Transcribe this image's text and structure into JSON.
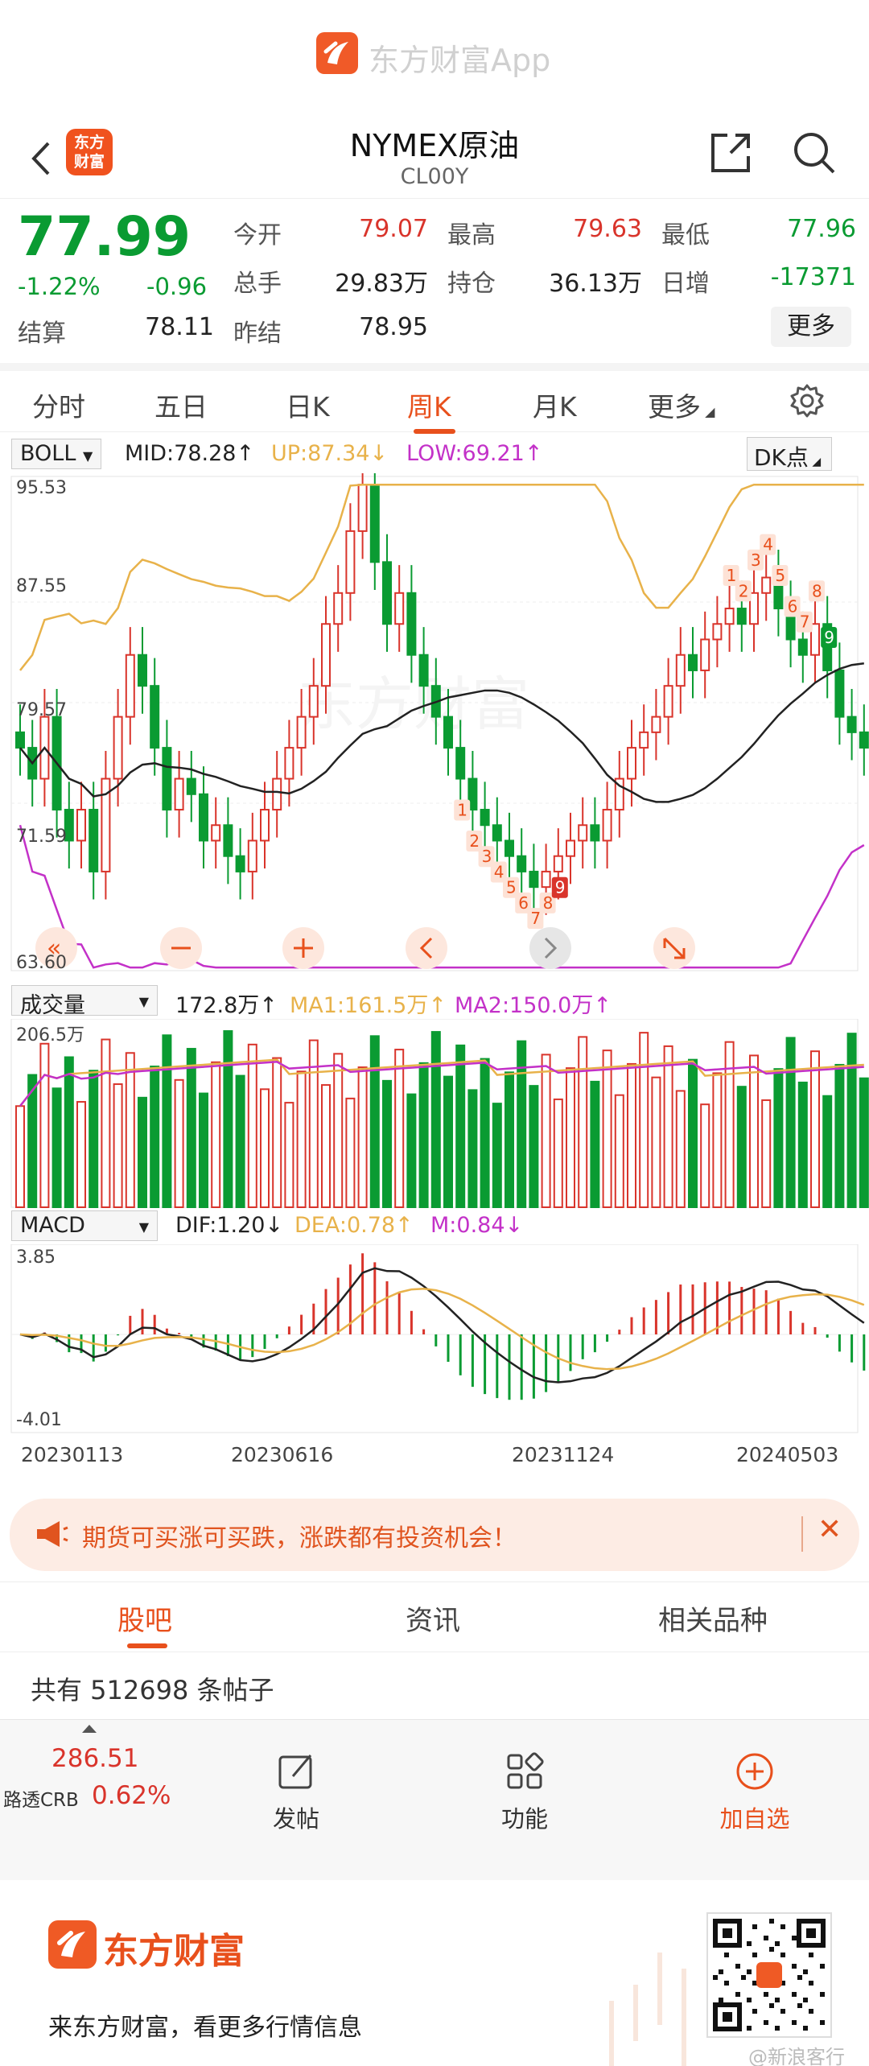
{
  "brand": {
    "title": "东方财富App"
  },
  "nav": {
    "title": "NYMEX原油",
    "code": "CL00Y",
    "logo_text_1": "东方",
    "logo_text_2": "财富"
  },
  "quote": {
    "price": "77.99",
    "change_pct": "-1.22%",
    "change_val": "-0.96",
    "fields": [
      {
        "label": "今开",
        "value": "79.07",
        "color": "red"
      },
      {
        "label": "最高",
        "value": "79.63",
        "color": "red"
      },
      {
        "label": "最低",
        "value": "77.96",
        "color": "green"
      },
      {
        "label": "总手",
        "value": "29.83万",
        "color": "black"
      },
      {
        "label": "持仓",
        "value": "36.13万",
        "color": "black"
      },
      {
        "label": "日增",
        "value": "-17371",
        "color": "green"
      },
      {
        "label": "结算",
        "value": "78.11",
        "color": "black"
      },
      {
        "label": "昨结",
        "value": "78.95",
        "color": "black"
      }
    ],
    "more": "更多"
  },
  "period_tabs": [
    "分时",
    "五日",
    "日K",
    "周K",
    "月K",
    "更多"
  ],
  "boll": {
    "name": "BOLL",
    "mid": "MID:78.28↑",
    "up": "UP:87.34↓",
    "low": "LOW:69.21↑",
    "dk": "DK点",
    "axis": [
      "95.53",
      "87.55",
      "79.57",
      "71.59",
      "63.60"
    ]
  },
  "volume": {
    "name": "成交量",
    "value": "172.8万↑",
    "ma1": "MA1:161.5万↑",
    "ma2": "MA2:150.0万↑",
    "axis_top": "206.5万"
  },
  "macd": {
    "name": "MACD",
    "dif": "DIF:1.20↓",
    "dea": "DEA:0.78↑",
    "m": "M:0.84↓",
    "axis_top": "3.85",
    "axis_bottom": "-4.01"
  },
  "dates": [
    "20230113",
    "20230616",
    "20231124",
    "20240503"
  ],
  "td_marks": [
    "1",
    "2",
    "3",
    "4",
    "5",
    "6",
    "7",
    "8",
    "9",
    "1",
    "2",
    "3",
    "4",
    "5",
    "6",
    "7",
    "8",
    "9"
  ],
  "colors": {
    "up": "#d9342b",
    "down": "#0a9b32",
    "accent": "#e8501c",
    "mid": "#222222",
    "upper": "#e8b24a",
    "lower": "#c331c8"
  },
  "promo": {
    "text": "期货可买涨可买跌，涨跌都有投资机会！"
  },
  "content_tabs": [
    "股吧",
    "资讯",
    "相关品种"
  ],
  "post_count": "共有 512698 条帖子",
  "toolbar": {
    "crb_value": "286.51",
    "crb_label": "路透CRB",
    "crb_pct": "0.62%",
    "post": "发帖",
    "function": "功能",
    "add": "加自选"
  },
  "footer": {
    "brand": "东方财富",
    "slogan": "来东方财富，看更多行情信息",
    "watermark": "@新浪客行"
  }
}
